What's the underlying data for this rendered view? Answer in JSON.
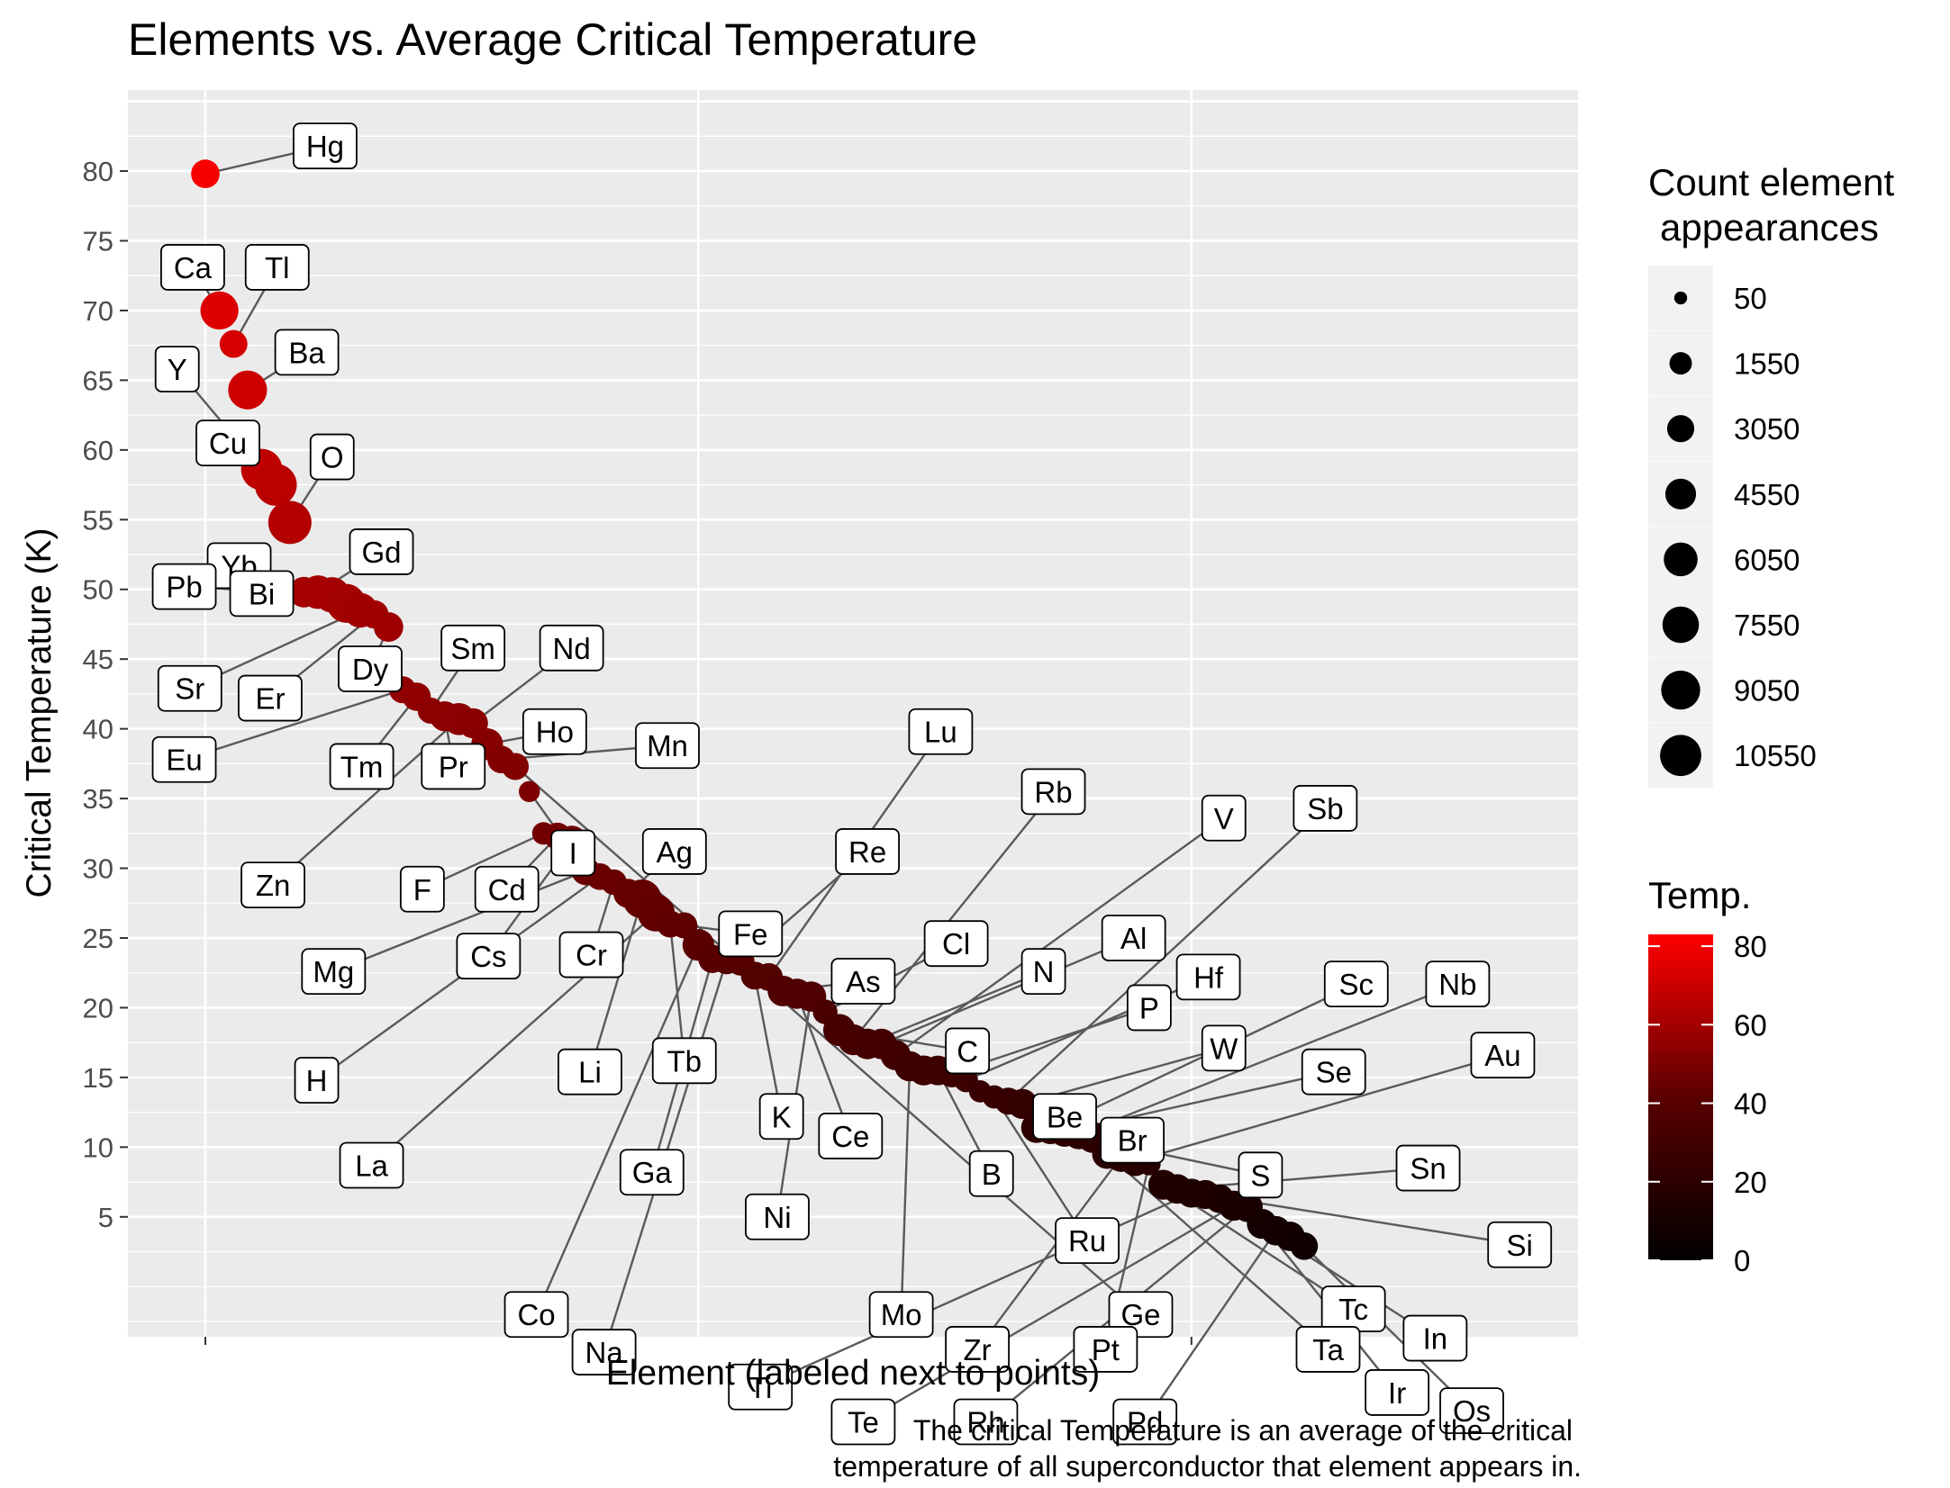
{
  "chart_data": {
    "type": "scatter",
    "title": "Elements vs. Average Critical Temperature",
    "xlabel": "Element (labeled next to points)",
    "ylabel": "Critical Temperature (K)",
    "caption_lines": [
      "The critical Temperature is an average of the critical",
      "temperature of all superconductor that element appears in."
    ],
    "x_range": [
      -0.5,
      79.5
    ],
    "ylim": [
      -3.6,
      85.8
    ],
    "y_ticks": [
      5,
      10,
      15,
      20,
      25,
      30,
      35,
      40,
      45,
      50,
      55,
      60,
      65,
      70,
      75,
      80
    ],
    "y_tick_labels": [
      "5",
      "10",
      "15",
      "20",
      "25",
      "30",
      "35",
      "40",
      "45",
      "50",
      "55",
      "60",
      "65",
      "70",
      "75",
      "80"
    ],
    "size_legend": {
      "title_lines": [
        "Count element",
        "appearances"
      ],
      "values": [
        50,
        1550,
        3050,
        4550,
        6050,
        7550,
        9050,
        10550
      ],
      "labels": [
        "50",
        "1550",
        "3050",
        "4550",
        "6050",
        "7550",
        "9050",
        "10550"
      ]
    },
    "color_legend": {
      "title": "Temp.",
      "min": 0,
      "max": 83,
      "ticks": [
        0,
        20,
        40,
        60,
        80
      ],
      "tick_labels": [
        "0",
        "20",
        "40",
        "60",
        "80"
      ],
      "low_color": "#000000",
      "high_color": "#ff0000"
    },
    "colors": {
      "panel_bg": "#ebebeb",
      "grid": "#ffffff",
      "label_border": "#000000",
      "arrow": "#555555"
    },
    "points": [
      {
        "element": "Hg",
        "tc": 79.8,
        "count": 3600
      },
      {
        "element": "Ca",
        "tc": 70.0,
        "count": 8500
      },
      {
        "element": "Tl",
        "tc": 67.6,
        "count": 3300
      },
      {
        "element": "Ba",
        "tc": 64.3,
        "count": 9000
      },
      {
        "element": "Y",
        "tc": 58.6,
        "count": 10600
      },
      {
        "element": "Cu",
        "tc": 57.5,
        "count": 11100
      },
      {
        "element": "O",
        "tc": 54.8,
        "count": 12000
      },
      {
        "element": "Yb",
        "tc": 49.8,
        "count": 4500
      },
      {
        "element": "Gd",
        "tc": 49.8,
        "count": 6000
      },
      {
        "element": "Pb",
        "tc": 49.6,
        "count": 7000
      },
      {
        "element": "Bi",
        "tc": 49.0,
        "count": 9000
      },
      {
        "element": "Sr",
        "tc": 48.5,
        "count": 6500
      },
      {
        "element": "Er",
        "tc": 48.2,
        "count": 3500
      },
      {
        "element": "Dy",
        "tc": 47.3,
        "count": 4000
      },
      {
        "element": "Eu",
        "tc": 42.8,
        "count": 3000
      },
      {
        "element": "Tm",
        "tc": 42.3,
        "count": 3500
      },
      {
        "element": "Sm",
        "tc": 41.3,
        "count": 2700
      },
      {
        "element": "Pr",
        "tc": 40.9,
        "count": 4200
      },
      {
        "element": "Zn",
        "tc": 40.7,
        "count": 5200
      },
      {
        "element": "Nd",
        "tc": 40.4,
        "count": 4200
      },
      {
        "element": "Ho",
        "tc": 38.9,
        "count": 5000
      },
      {
        "element": "Mn",
        "tc": 37.8,
        "count": 3200
      },
      {
        "element": "Ge",
        "tc": 37.3,
        "count": 3000
      },
      {
        "element": "I",
        "tc": 35.5,
        "count": 1200
      },
      {
        "element": "F",
        "tc": 32.5,
        "count": 1600
      },
      {
        "element": "Cd",
        "tc": 32.3,
        "count": 3000
      },
      {
        "element": "Cs",
        "tc": 31.9,
        "count": 5200
      },
      {
        "element": "Mg",
        "tc": 29.8,
        "count": 3500
      },
      {
        "element": "H",
        "tc": 29.4,
        "count": 2900
      },
      {
        "element": "Cr",
        "tc": 29.0,
        "count": 2500
      },
      {
        "element": "Ag",
        "tc": 28.2,
        "count": 3800
      },
      {
        "element": "Li",
        "tc": 27.8,
        "count": 9000
      },
      {
        "element": "La",
        "tc": 26.8,
        "count": 8000
      },
      {
        "element": "Tb",
        "tc": 26.0,
        "count": 3000
      },
      {
        "element": "Fe",
        "tc": 25.9,
        "count": 2700
      },
      {
        "element": "Co",
        "tc": 24.5,
        "count": 5000
      },
      {
        "element": "Ga",
        "tc": 23.5,
        "count": 3500
      },
      {
        "element": "Na",
        "tc": 23.4,
        "count": 3400
      },
      {
        "element": "Re",
        "tc": 23.3,
        "count": 3300
      },
      {
        "element": "K",
        "tc": 22.3,
        "count": 3300
      },
      {
        "element": "Lu",
        "tc": 22.2,
        "count": 3300
      },
      {
        "element": "As",
        "tc": 21.2,
        "count": 4500
      },
      {
        "element": "Ce",
        "tc": 21.0,
        "count": 4300
      },
      {
        "element": "Ni",
        "tc": 20.8,
        "count": 4300
      },
      {
        "element": "Cl",
        "tc": 19.7,
        "count": 2200
      },
      {
        "element": "C",
        "tc": 18.4,
        "count": 5200
      },
      {
        "element": "Rb",
        "tc": 17.7,
        "count": 4600
      },
      {
        "element": "N",
        "tc": 17.4,
        "count": 4500
      },
      {
        "element": "Al",
        "tc": 17.4,
        "count": 4400
      },
      {
        "element": "V",
        "tc": 16.6,
        "count": 4300
      },
      {
        "element": "Mo",
        "tc": 15.8,
        "count": 4300
      },
      {
        "element": "Be",
        "tc": 15.5,
        "count": 4200
      },
      {
        "element": "B",
        "tc": 15.5,
        "count": 4100
      },
      {
        "element": "P",
        "tc": 15.3,
        "count": 3500
      },
      {
        "element": "Hf",
        "tc": 14.8,
        "count": 2000
      },
      {
        "element": "Br",
        "tc": 14.0,
        "count": 1500
      },
      {
        "element": "Ru",
        "tc": 13.6,
        "count": 1800
      },
      {
        "element": "Sb",
        "tc": 13.3,
        "count": 3000
      },
      {
        "element": "W",
        "tc": 13.1,
        "count": 4200
      },
      {
        "element": "S",
        "tc": 11.4,
        "count": 4500
      },
      {
        "element": "Sc",
        "tc": 11.3,
        "count": 4300
      },
      {
        "element": "Se",
        "tc": 11.1,
        "count": 4200
      },
      {
        "element": "Nb",
        "tc": 10.9,
        "count": 4000
      },
      {
        "element": "Ge",
        "tc": 10.7,
        "count": 4700
      },
      {
        "element": "Ta",
        "tc": 9.5,
        "count": 4000
      },
      {
        "element": "Zr",
        "tc": 9.3,
        "count": 4200
      },
      {
        "element": "Au",
        "tc": 9.0,
        "count": 4200
      },
      {
        "element": "Pt",
        "tc": 8.8,
        "count": 1700
      },
      {
        "element": "Tc",
        "tc": 7.3,
        "count": 4200
      },
      {
        "element": "Sn",
        "tc": 7.0,
        "count": 4000
      },
      {
        "element": "Ti",
        "tc": 6.7,
        "count": 3800
      },
      {
        "element": "Si",
        "tc": 6.6,
        "count": 3800
      },
      {
        "element": "In",
        "tc": 6.3,
        "count": 3700
      },
      {
        "element": "Te",
        "tc": 5.8,
        "count": 4300
      },
      {
        "element": "Rh",
        "tc": 5.7,
        "count": 4200
      },
      {
        "element": "Ir",
        "tc": 4.5,
        "count": 4200
      },
      {
        "element": "Pd",
        "tc": 4.0,
        "count": 4000
      },
      {
        "element": "Ir",
        "tc": 3.6,
        "count": 4000
      },
      {
        "element": "Os",
        "tc": 2.9,
        "count": 3200
      }
    ],
    "labels": [
      {
        "text": "Hg",
        "at_x": 8.5,
        "at_y": 81.8
      },
      {
        "text": "Ca",
        "at_x": -0.9,
        "at_y": 73.1
      },
      {
        "text": "Tl",
        "at_x": 5.1,
        "at_y": 73.1
      },
      {
        "text": "Ba",
        "at_x": 7.2,
        "at_y": 67.0
      },
      {
        "text": "Y",
        "at_x": -2.0,
        "at_y": 65.8
      },
      {
        "text": "Cu",
        "at_x": 1.6,
        "at_y": 60.5
      },
      {
        "text": "O",
        "at_x": 9.0,
        "at_y": 59.5
      },
      {
        "text": "Yb",
        "at_x": 2.4,
        "at_y": 51.7
      },
      {
        "text": "Gd",
        "at_x": 12.5,
        "at_y": 52.7
      },
      {
        "text": "Pb",
        "at_x": -1.5,
        "at_y": 50.2
      },
      {
        "text": "Bi",
        "at_x": 4.0,
        "at_y": 49.7
      },
      {
        "text": "Sr",
        "at_x": -1.1,
        "at_y": 42.9
      },
      {
        "text": "Er",
        "at_x": 4.6,
        "at_y": 42.2
      },
      {
        "text": "Dy",
        "at_x": 11.7,
        "at_y": 44.3
      },
      {
        "text": "Sm",
        "at_x": 19.0,
        "at_y": 45.8
      },
      {
        "text": "Nd",
        "at_x": 26.0,
        "at_y": 45.8
      },
      {
        "text": "Ho",
        "at_x": 24.8,
        "at_y": 39.8
      },
      {
        "text": "Mn",
        "at_x": 32.8,
        "at_y": 38.8
      },
      {
        "text": "Eu",
        "at_x": -1.5,
        "at_y": 37.8
      },
      {
        "text": "Tm",
        "at_x": 11.1,
        "at_y": 37.3
      },
      {
        "text": "Pr",
        "at_x": 17.6,
        "at_y": 37.3
      },
      {
        "text": "I",
        "at_x": 26.1,
        "at_y": 31.1
      },
      {
        "text": "Ag",
        "at_x": 33.3,
        "at_y": 31.2
      },
      {
        "text": "Re",
        "at_x": 47.0,
        "at_y": 31.2
      },
      {
        "text": "Lu",
        "at_x": 52.2,
        "at_y": 39.8
      },
      {
        "text": "Rb",
        "at_x": 60.2,
        "at_y": 35.5
      },
      {
        "text": "V",
        "at_x": 72.3,
        "at_y": 33.6
      },
      {
        "text": "Sb",
        "at_x": 79.5,
        "at_y": 34.3
      },
      {
        "text": "Zn",
        "at_x": 4.8,
        "at_y": 28.8
      },
      {
        "text": "F",
        "at_x": 15.4,
        "at_y": 28.5
      },
      {
        "text": "Cd",
        "at_x": 21.4,
        "at_y": 28.5
      },
      {
        "text": "Fe",
        "at_x": 38.7,
        "at_y": 25.3
      },
      {
        "text": "Cl",
        "at_x": 53.3,
        "at_y": 24.6
      },
      {
        "text": "Al",
        "at_x": 65.9,
        "at_y": 25.0
      },
      {
        "text": "Hf",
        "at_x": 71.2,
        "at_y": 22.2
      },
      {
        "text": "Sc",
        "at_x": 81.7,
        "at_y": 21.7
      },
      {
        "text": "Nb",
        "at_x": 88.9,
        "at_y": 21.7
      },
      {
        "text": "Mg",
        "at_x": 9.1,
        "at_y": 22.6
      },
      {
        "text": "Cs",
        "at_x": 20.1,
        "at_y": 23.7
      },
      {
        "text": "Cr",
        "at_x": 27.4,
        "at_y": 23.8
      },
      {
        "text": "As",
        "at_x": 46.7,
        "at_y": 21.9
      },
      {
        "text": "N",
        "at_x": 59.5,
        "at_y": 22.6
      },
      {
        "text": "P",
        "at_x": 67.0,
        "at_y": 20.0
      },
      {
        "text": "H",
        "at_x": 7.9,
        "at_y": 14.8
      },
      {
        "text": "Li",
        "at_x": 27.3,
        "at_y": 15.4
      },
      {
        "text": "Tb",
        "at_x": 34.0,
        "at_y": 16.2
      },
      {
        "text": "C",
        "at_x": 54.1,
        "at_y": 16.9
      },
      {
        "text": "W",
        "at_x": 72.3,
        "at_y": 17.1
      },
      {
        "text": "Au",
        "at_x": 92.1,
        "at_y": 16.6
      },
      {
        "text": "Se",
        "at_x": 80.1,
        "at_y": 15.4
      },
      {
        "text": "K",
        "at_x": 40.9,
        "at_y": 12.2
      },
      {
        "text": "Ce",
        "at_x": 45.8,
        "at_y": 10.8
      },
      {
        "text": "Be",
        "at_x": 61.0,
        "at_y": 12.2
      },
      {
        "text": "Br",
        "at_x": 65.8,
        "at_y": 10.5
      },
      {
        "text": "La",
        "at_x": 11.8,
        "at_y": 8.7
      },
      {
        "text": "Ga",
        "at_x": 31.7,
        "at_y": 8.2
      },
      {
        "text": "B",
        "at_x": 55.8,
        "at_y": 8.1
      },
      {
        "text": "S",
        "at_x": 74.9,
        "at_y": 8.0
      },
      {
        "text": "Sn",
        "at_x": 86.8,
        "at_y": 8.5
      },
      {
        "text": "Ni",
        "at_x": 40.6,
        "at_y": 5.0
      },
      {
        "text": "Ru",
        "at_x": 62.6,
        "at_y": 3.3
      },
      {
        "text": "Si",
        "at_x": 93.3,
        "at_y": 3.0
      },
      {
        "text": "Co",
        "at_x": 23.5,
        "at_y": -2.0
      },
      {
        "text": "Mo",
        "at_x": 49.4,
        "at_y": -2.0
      },
      {
        "text": "Ge",
        "at_x": 66.4,
        "at_y": -2.0
      },
      {
        "text": "Tc",
        "at_x": 81.5,
        "at_y": -1.6
      },
      {
        "text": "Na",
        "at_x": 28.3,
        "at_y": -4.7
      },
      {
        "text": "In",
        "at_x": 87.3,
        "at_y": -3.7
      },
      {
        "text": "Zr",
        "at_x": 54.8,
        "at_y": -4.5
      },
      {
        "text": "Pt",
        "at_x": 63.9,
        "at_y": -4.5
      },
      {
        "text": "Ta",
        "at_x": 79.7,
        "at_y": -4.5
      },
      {
        "text": "Ti",
        "at_x": 39.4,
        "at_y": -7.2
      },
      {
        "text": "Ir",
        "at_x": 84.6,
        "at_y": -7.6
      },
      {
        "text": "Te",
        "at_x": 46.7,
        "at_y": -9.7
      },
      {
        "text": "Rh",
        "at_x": 55.4,
        "at_y": -9.7
      },
      {
        "text": "Pd",
        "at_x": 66.7,
        "at_y": -9.7
      },
      {
        "text": "Os",
        "at_x": 89.9,
        "at_y": -8.9
      }
    ]
  }
}
